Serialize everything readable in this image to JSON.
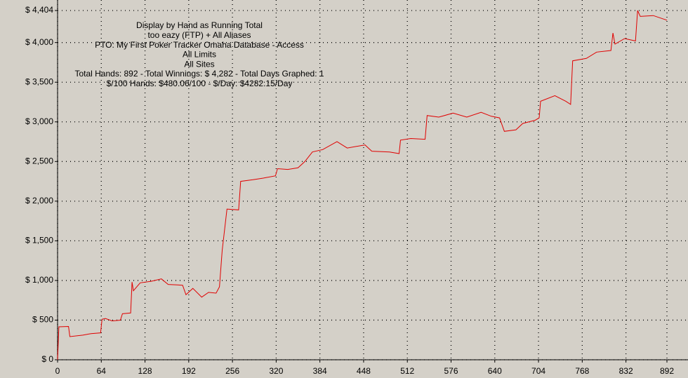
{
  "chart_data": {
    "type": "line",
    "title_lines": [
      "Display by Hand as Running Total",
      "too eazy (FTP) + All Aliases",
      "PTO: My First Poker Tracker Omaha Database - Access",
      "All Limits",
      "All Sites",
      "Total Hands: 892 - Total Winnings: $ 4,282 - Total Days Graphed: 1",
      "$/100 Hands: $480.06/100 - $/Day: $4282.15/Day"
    ],
    "x": [
      0,
      2,
      16,
      18,
      37,
      49,
      63,
      65,
      70,
      80,
      92,
      95,
      107,
      109,
      111,
      121,
      137,
      152,
      162,
      183,
      188,
      198,
      211,
      221,
      232,
      237,
      241,
      248,
      265,
      268,
      286,
      301,
      319,
      322,
      337,
      352,
      362,
      373,
      388,
      409,
      424,
      450,
      460,
      486,
      500,
      502,
      517,
      538,
      541,
      558,
      579,
      599,
      620,
      635,
      647,
      654,
      671,
      681,
      699,
      705,
      707,
      728,
      744,
      751,
      754,
      774,
      789,
      810,
      813,
      816,
      830,
      846,
      849,
      853,
      872,
      892
    ],
    "series": [
      {
        "color": "#e00000",
        "values": [
          0,
          416,
          420,
          292,
          310,
          330,
          340,
          510,
          520,
          490,
          500,
          580,
          590,
          980,
          870,
          970,
          990,
          1020,
          950,
          940,
          820,
          900,
          790,
          850,
          840,
          920,
          1380,
          1900,
          1890,
          2250,
          2270,
          2290,
          2320,
          2410,
          2400,
          2420,
          2500,
          2620,
          2650,
          2750,
          2670,
          2710,
          2630,
          2620,
          2600,
          2770,
          2790,
          2780,
          3080,
          3060,
          3110,
          3060,
          3120,
          3070,
          3050,
          2880,
          2900,
          2980,
          3020,
          3050,
          3260,
          3330,
          3260,
          3220,
          3770,
          3800,
          3880,
          3900,
          4120,
          3980,
          4050,
          4020,
          4404,
          4330,
          4340,
          4282
        ]
      }
    ],
    "xlim": [
      0,
      892
    ],
    "xticks": [
      0,
      64,
      128,
      192,
      256,
      320,
      384,
      448,
      512,
      576,
      640,
      704,
      768,
      832,
      892
    ],
    "ylim": [
      0,
      4404
    ],
    "yticks": [
      {
        "value": 0,
        "label": "$ 0"
      },
      {
        "value": 500,
        "label": "$ 500"
      },
      {
        "value": 1000,
        "label": "$ 1,000"
      },
      {
        "value": 1500,
        "label": "$ 1,500"
      },
      {
        "value": 2000,
        "label": "$ 2,000"
      },
      {
        "value": 2500,
        "label": "$ 2,500"
      },
      {
        "value": 3000,
        "label": "$ 3,000"
      },
      {
        "value": 3500,
        "label": "$ 3,500"
      },
      {
        "value": 4000,
        "label": "$ 4,000"
      },
      {
        "value": 4404,
        "label": "$ 4,404"
      }
    ],
    "grid": true
  }
}
